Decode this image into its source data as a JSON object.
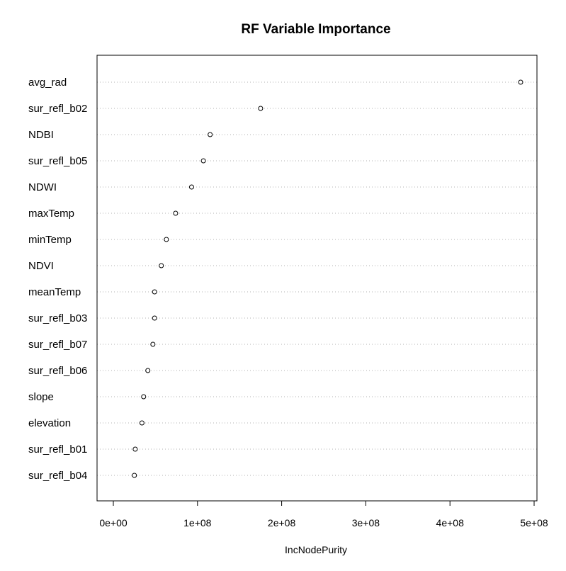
{
  "chart_data": {
    "type": "scatter",
    "title": "RF Variable Importance",
    "xlabel": "IncNodePurity",
    "ylabel": "",
    "xlim": [
      0,
      500000000
    ],
    "x_ticks": [
      0,
      100000000,
      200000000,
      300000000,
      400000000,
      500000000
    ],
    "x_tick_labels": [
      "0e+00",
      "1e+08",
      "2e+08",
      "3e+08",
      "4e+08",
      "5e+08"
    ],
    "grid": "horizontal dotted",
    "legend": "none",
    "categories": [
      "avg_rad",
      "sur_refl_b02",
      "NDBI",
      "sur_refl_b05",
      "NDWI",
      "maxTemp",
      "minTemp",
      "NDVI",
      "meanTemp",
      "sur_refl_b03",
      "sur_refl_b07",
      "sur_refl_b06",
      "slope",
      "elevation",
      "sur_refl_b01",
      "sur_refl_b04"
    ],
    "values": [
      484000000,
      175000000,
      115000000,
      107000000,
      93000000,
      74000000,
      63000000,
      57000000,
      49000000,
      49000000,
      47000000,
      41000000,
      36000000,
      34000000,
      26000000,
      25000000
    ]
  }
}
